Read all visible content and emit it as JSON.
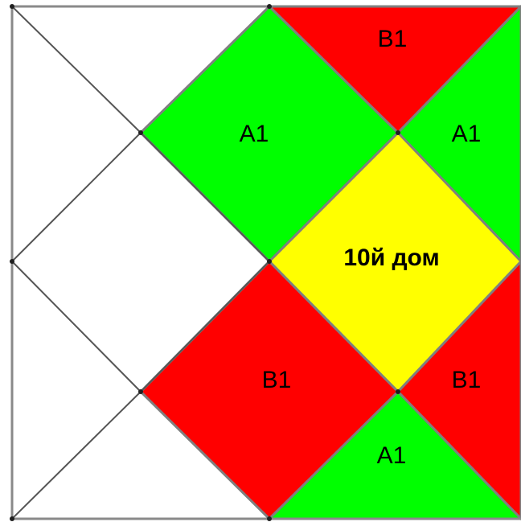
{
  "diagram": {
    "colors": {
      "green": "#00ff00",
      "red": "#ff0000",
      "yellow": "#ffff00",
      "line": "#555555",
      "border": "#8a8a8a"
    },
    "regions": [
      {
        "id": "top-green",
        "label": "A1",
        "fill": "green",
        "bold": false
      },
      {
        "id": "top-red",
        "label": "B1",
        "fill": "red",
        "bold": false
      },
      {
        "id": "right-green",
        "label": "A1",
        "fill": "green",
        "bold": false
      },
      {
        "id": "center-yellow",
        "label": "10й дом",
        "fill": "yellow",
        "bold": true
      },
      {
        "id": "bottom-red",
        "label": "B1",
        "fill": "red",
        "bold": false
      },
      {
        "id": "right-red",
        "label": "B1",
        "fill": "red",
        "bold": false
      },
      {
        "id": "bottom-green",
        "label": "A1",
        "fill": "green",
        "bold": false
      }
    ]
  }
}
